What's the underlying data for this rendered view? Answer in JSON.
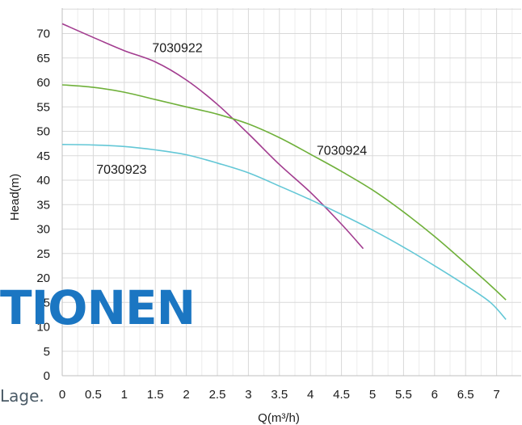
{
  "chart_data": {
    "type": "line",
    "xlabel": "Q(m³/h)",
    "ylabel": "Head(m)",
    "xlim": [
      0,
      7.25
    ],
    "ylim": [
      0,
      75
    ],
    "x_ticks": [
      "0",
      "0.5",
      "1",
      "1.5",
      "2",
      "2.5",
      "3",
      "3.5",
      "4",
      "4.5",
      "5",
      "5.5",
      "6",
      "6.5",
      "7"
    ],
    "y_ticks": [
      "0",
      "5",
      "10",
      "15",
      "20",
      "25",
      "30",
      "35",
      "40",
      "45",
      "50",
      "55",
      "60",
      "65",
      "70"
    ],
    "grid": true,
    "series": [
      {
        "name": "7030922",
        "color": "#a23c8f",
        "points": [
          [
            0,
            72
          ],
          [
            0.5,
            69.2
          ],
          [
            1,
            66.5
          ],
          [
            1.5,
            64.2
          ],
          [
            2,
            60.5
          ],
          [
            2.5,
            55.5
          ],
          [
            3,
            49.5
          ],
          [
            3.5,
            43.2
          ],
          [
            4,
            37.5
          ],
          [
            4.5,
            31
          ],
          [
            4.85,
            26
          ]
        ]
      },
      {
        "name": "7030924",
        "color": "#6fb03a",
        "points": [
          [
            0,
            59.5
          ],
          [
            0.5,
            59
          ],
          [
            1,
            58
          ],
          [
            1.5,
            56.5
          ],
          [
            2,
            55
          ],
          [
            2.5,
            53.5
          ],
          [
            3,
            51.5
          ],
          [
            3.5,
            48.7
          ],
          [
            4,
            45.3
          ],
          [
            4.5,
            41.8
          ],
          [
            5,
            38
          ],
          [
            5.5,
            33.5
          ],
          [
            6,
            28.5
          ],
          [
            6.5,
            23
          ],
          [
            6.9,
            18.5
          ],
          [
            7.15,
            15.5
          ]
        ]
      },
      {
        "name": "7030923",
        "color": "#63c7d6",
        "points": [
          [
            0,
            47.3
          ],
          [
            0.5,
            47.2
          ],
          [
            1,
            46.9
          ],
          [
            1.5,
            46.2
          ],
          [
            2,
            45.2
          ],
          [
            2.5,
            43.5
          ],
          [
            3,
            41.5
          ],
          [
            3.5,
            38.8
          ],
          [
            4,
            36
          ],
          [
            4.5,
            33
          ],
          [
            5,
            29.8
          ],
          [
            5.5,
            26.3
          ],
          [
            6,
            22.5
          ],
          [
            6.5,
            18.5
          ],
          [
            6.9,
            15
          ],
          [
            7.15,
            11.5
          ]
        ]
      }
    ]
  },
  "overlay": {
    "word": "TIONEN",
    "word_color": "#1b76c2",
    "fragment": "Lage.",
    "fragment_color": "#4a5a66"
  }
}
